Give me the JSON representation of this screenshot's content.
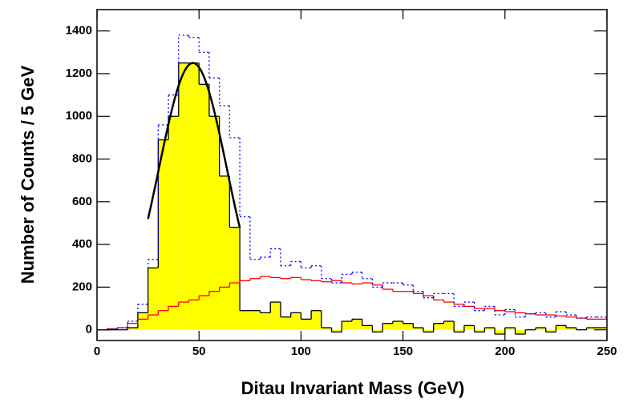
{
  "chart_data": {
    "type": "histogram",
    "xlabel": "Ditau Invariant Mass (GeV)",
    "ylabel": "Number of Counts / 5 GeV",
    "bins": [
      0,
      5,
      10,
      15,
      20,
      25,
      30,
      35,
      40,
      45,
      50,
      55,
      60,
      65,
      70,
      75,
      80,
      85,
      90,
      95,
      100,
      105,
      110,
      115,
      120,
      125,
      130,
      135,
      140,
      145,
      150,
      155,
      160,
      165,
      170,
      175,
      180,
      185,
      190,
      195,
      200,
      205,
      210,
      215,
      220,
      225,
      230,
      235,
      240,
      245,
      250
    ],
    "series": [
      {
        "color": "#ffff00",
        "edge_color": "#000000",
        "filled": true,
        "style": "solid",
        "values": [
          0,
          0,
          0,
          10,
          80,
          290,
          890,
          1000,
          1250,
          1250,
          1150,
          1000,
          720,
          480,
          90,
          90,
          80,
          130,
          60,
          80,
          50,
          90,
          10,
          -10,
          40,
          50,
          20,
          -10,
          30,
          40,
          30,
          10,
          -10,
          30,
          40,
          -10,
          20,
          -10,
          10,
          -20,
          10,
          -20,
          0,
          10,
          -10,
          20,
          10,
          0,
          10,
          10
        ]
      },
      {
        "color": "#ff0000",
        "filled": false,
        "style": "solid",
        "values": [
          0,
          5,
          10,
          30,
          50,
          70,
          90,
          110,
          130,
          140,
          160,
          180,
          200,
          220,
          230,
          240,
          250,
          245,
          240,
          245,
          235,
          230,
          225,
          230,
          220,
          215,
          220,
          210,
          190,
          180,
          180,
          170,
          160,
          140,
          130,
          120,
          110,
          100,
          100,
          90,
          85,
          80,
          75,
          70,
          70,
          65,
          60,
          55,
          50,
          50
        ]
      },
      {
        "color": "#0000ff",
        "filled": false,
        "style": "dotted",
        "values": [
          0,
          5,
          10,
          40,
          120,
          330,
          960,
          1100,
          1380,
          1370,
          1300,
          1180,
          1050,
          900,
          530,
          330,
          340,
          380,
          300,
          320,
          290,
          300,
          240,
          220,
          260,
          270,
          240,
          200,
          220,
          220,
          210,
          180,
          150,
          170,
          170,
          110,
          130,
          90,
          110,
          70,
          95,
          60,
          75,
          80,
          60,
          85,
          70,
          55,
          60,
          60
        ]
      }
    ],
    "fit": {
      "color": "#000000",
      "amplitude": 1250,
      "mean": 47,
      "sigma": 16.6,
      "range": [
        25,
        70
      ]
    },
    "xlim": [
      0,
      250
    ],
    "xticks": [
      0,
      50,
      100,
      150,
      200,
      250
    ],
    "ylim": [
      -50,
      1500
    ],
    "yticks": [
      0,
      200,
      400,
      600,
      800,
      1000,
      1200,
      1400
    ]
  }
}
